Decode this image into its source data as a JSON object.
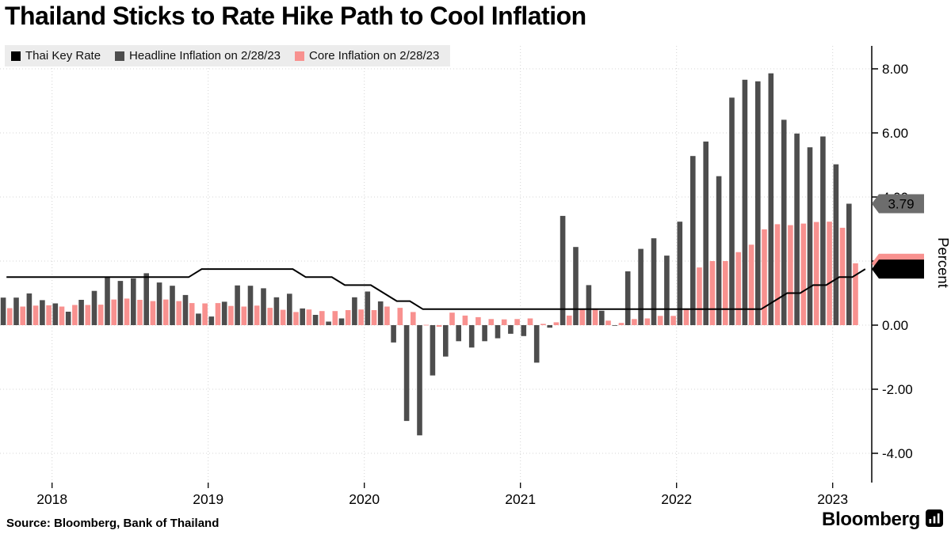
{
  "title": "Thailand Sticks to Rate Hike Path to Cool Inflation",
  "legend": {
    "items": [
      {
        "label": "Thai Key Rate",
        "color": "#000000"
      },
      {
        "label": "Headline Inflation on 2/28/23",
        "color": "#4d4d4d"
      },
      {
        "label": "Core Inflation on 2/28/23",
        "color": "#f8918f"
      }
    ]
  },
  "footer": {
    "source": "Source: Bloomberg, Bank of Thailand",
    "brand": "Bloomberg"
  },
  "icons": {
    "brand_icon": "bloomberg-chart-icon"
  },
  "chart_data": {
    "type": "bar",
    "subtype": "grouped bars with line overlay",
    "title": "Thailand Sticks to Rate Hike Path to Cool Inflation",
    "xlabel": "",
    "ylabel": "Percent",
    "ylim": [
      -4.6,
      8.7
    ],
    "yticks": [
      -4,
      -2,
      0,
      2,
      4,
      6,
      8
    ],
    "grid": "dotted",
    "legend_position": "top-left",
    "year_labels": [
      "2018",
      "2019",
      "2020",
      "2021",
      "2022",
      "2023"
    ],
    "months": [
      "2017-09",
      "2017-10",
      "2017-11",
      "2017-12",
      "2018-01",
      "2018-02",
      "2018-03",
      "2018-04",
      "2018-05",
      "2018-06",
      "2018-07",
      "2018-08",
      "2018-09",
      "2018-10",
      "2018-11",
      "2018-12",
      "2019-01",
      "2019-02",
      "2019-03",
      "2019-04",
      "2019-05",
      "2019-06",
      "2019-07",
      "2019-08",
      "2019-09",
      "2019-10",
      "2019-11",
      "2019-12",
      "2020-01",
      "2020-02",
      "2020-03",
      "2020-04",
      "2020-05",
      "2020-06",
      "2020-07",
      "2020-08",
      "2020-09",
      "2020-10",
      "2020-11",
      "2020-12",
      "2021-01",
      "2021-02",
      "2021-03",
      "2021-04",
      "2021-05",
      "2021-06",
      "2021-07",
      "2021-08",
      "2021-09",
      "2021-10",
      "2021-11",
      "2021-12",
      "2022-01",
      "2022-02",
      "2022-03",
      "2022-04",
      "2022-05",
      "2022-06",
      "2022-07",
      "2022-08",
      "2022-09",
      "2022-10",
      "2022-11",
      "2022-12",
      "2023-01",
      "2023-02"
    ],
    "series": [
      {
        "name": "Headline Inflation on 2/28/23",
        "type": "bar",
        "color": "#4d4d4d",
        "values": [
          0.86,
          0.86,
          0.99,
          0.78,
          0.68,
          0.42,
          0.79,
          1.07,
          1.49,
          1.38,
          1.46,
          1.62,
          1.33,
          1.23,
          0.94,
          0.36,
          0.27,
          0.73,
          1.24,
          1.23,
          1.15,
          0.87,
          0.98,
          0.52,
          0.32,
          0.11,
          0.21,
          0.87,
          1.05,
          0.74,
          -0.54,
          -2.99,
          -3.44,
          -1.57,
          -0.98,
          -0.5,
          -0.7,
          -0.5,
          -0.41,
          -0.27,
          -0.34,
          -1.17,
          -0.08,
          3.41,
          2.44,
          1.25,
          0.45,
          -0.02,
          1.68,
          2.38,
          2.71,
          2.17,
          3.23,
          5.28,
          5.73,
          4.65,
          7.1,
          7.66,
          7.61,
          7.86,
          6.41,
          5.98,
          5.55,
          5.89,
          5.02,
          3.79
        ]
      },
      {
        "name": "Core Inflation on 2/28/23",
        "type": "bar",
        "color": "#f8918f",
        "values": [
          0.53,
          0.58,
          0.61,
          0.62,
          0.58,
          0.63,
          0.63,
          0.64,
          0.8,
          0.83,
          0.79,
          0.75,
          0.8,
          0.75,
          0.69,
          0.68,
          0.69,
          0.6,
          0.58,
          0.61,
          0.54,
          0.48,
          0.41,
          0.49,
          0.44,
          0.44,
          0.47,
          0.49,
          0.47,
          0.58,
          0.54,
          0.41,
          0.01,
          -0.05,
          0.39,
          0.3,
          0.25,
          0.19,
          0.18,
          0.19,
          0.21,
          0.04,
          0.09,
          0.3,
          0.49,
          0.52,
          0.14,
          0.07,
          0.19,
          0.21,
          0.29,
          0.29,
          0.52,
          1.8,
          2.0,
          2.0,
          2.28,
          2.51,
          2.99,
          3.15,
          3.12,
          3.17,
          3.22,
          3.23,
          3.04,
          1.93
        ]
      },
      {
        "name": "Thai Key Rate",
        "type": "line",
        "color": "#000000",
        "extends_to": "2023-03",
        "values": [
          1.5,
          1.5,
          1.5,
          1.5,
          1.5,
          1.5,
          1.5,
          1.5,
          1.5,
          1.5,
          1.5,
          1.5,
          1.5,
          1.5,
          1.5,
          1.75,
          1.75,
          1.75,
          1.75,
          1.75,
          1.75,
          1.75,
          1.75,
          1.5,
          1.5,
          1.5,
          1.25,
          1.25,
          1.25,
          1.0,
          0.75,
          0.75,
          0.5,
          0.5,
          0.5,
          0.5,
          0.5,
          0.5,
          0.5,
          0.5,
          0.5,
          0.5,
          0.5,
          0.5,
          0.5,
          0.5,
          0.5,
          0.5,
          0.5,
          0.5,
          0.5,
          0.5,
          0.5,
          0.5,
          0.5,
          0.5,
          0.5,
          0.5,
          0.5,
          0.75,
          1.0,
          1.0,
          1.25,
          1.25,
          1.5,
          1.5,
          1.75
        ]
      }
    ],
    "axis_badges": [
      {
        "series": "headline",
        "label": "3.79",
        "value": 3.79,
        "bg": "#6d6d6d",
        "fg": "#ffffff"
      },
      {
        "series": "core",
        "label": "",
        "value": 1.93,
        "bg": "#f8918f",
        "fg": "#ffffff"
      },
      {
        "series": "key-rate",
        "label": "1.75",
        "value": 1.75,
        "bg": "#000000",
        "fg": "#ffffff"
      }
    ]
  }
}
